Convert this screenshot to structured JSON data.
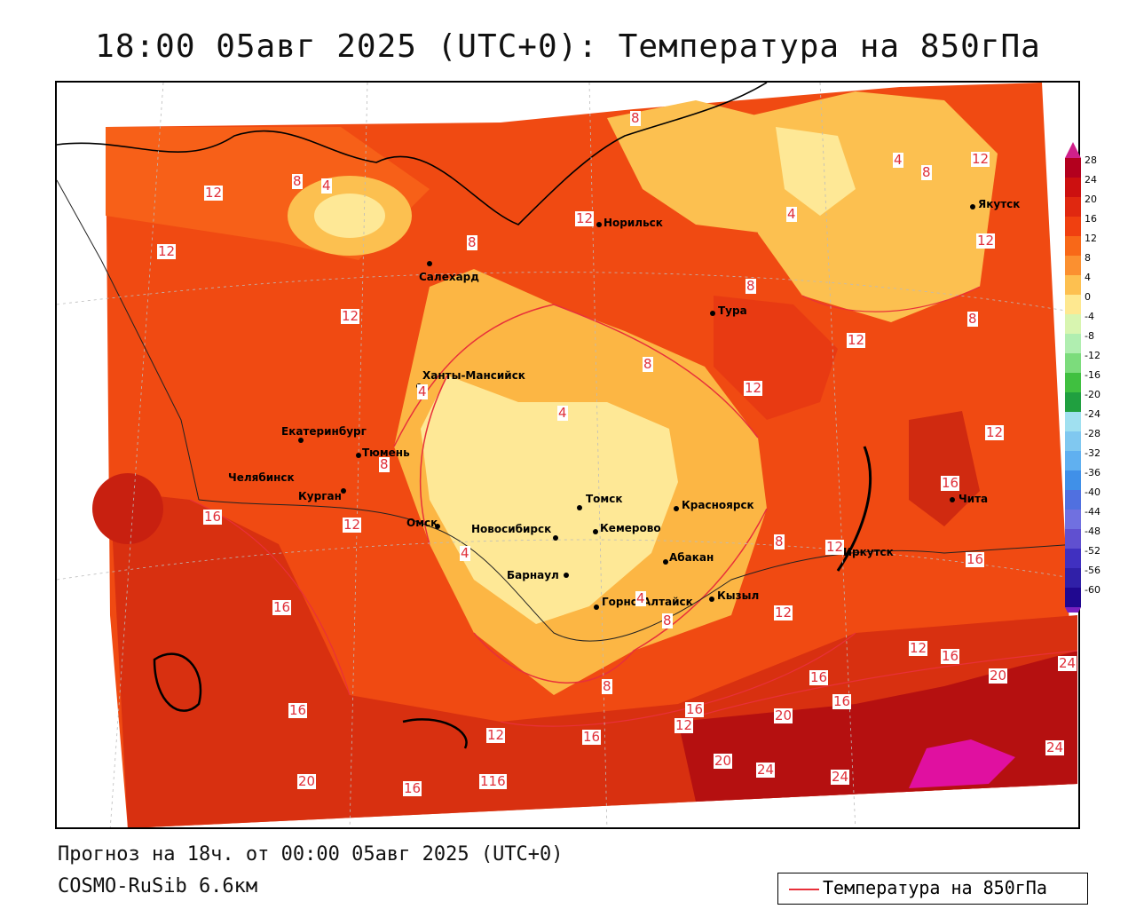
{
  "title": "18:00 05авг 2025 (UTC+0): Температура на 850гПа",
  "footer": {
    "forecast": "Прогноз на 18ч. от 00:00 05авг 2025 (UTC+0)",
    "model": "COSMO-RuSib 6.6км"
  },
  "legend": {
    "label": "Температура на 850гПа",
    "line_color": "#e8303a"
  },
  "colorbar": {
    "ticks": [
      "28",
      "24",
      "20",
      "16",
      "12",
      "8",
      "4",
      "0",
      "-4",
      "-8",
      "-12",
      "-16",
      "-20",
      "-24",
      "-28",
      "-32",
      "-36",
      "-40",
      "-44",
      "-48",
      "-52",
      "-56",
      "-60"
    ],
    "colors": [
      "#b3001e",
      "#cc1010",
      "#e02810",
      "#f04010",
      "#f86818",
      "#fb9030",
      "#fdc050",
      "#fee890",
      "#d8f5b0",
      "#b0eeb0",
      "#7cdc7c",
      "#40c040",
      "#20a040",
      "#a0e0f0",
      "#80c8f0",
      "#60b0f0",
      "#4090e8",
      "#5070e0",
      "#7070e0",
      "#6050d0",
      "#4030c0",
      "#3020a8",
      "#200890"
    ]
  },
  "cities": [
    {
      "name": "Норильск"
    },
    {
      "name": "Салехард"
    },
    {
      "name": "Якутск"
    },
    {
      "name": "Тура"
    },
    {
      "name": "Ханты-Мансийск"
    },
    {
      "name": "Екатеринбург"
    },
    {
      "name": "Тюмень"
    },
    {
      "name": "Челябинск"
    },
    {
      "name": "Курган"
    },
    {
      "name": "Томск"
    },
    {
      "name": "Красноярск"
    },
    {
      "name": "Омск"
    },
    {
      "name": "Новосибирск"
    },
    {
      "name": "Кемерово"
    },
    {
      "name": "Абакан"
    },
    {
      "name": "Барнаул"
    },
    {
      "name": "Иркутск"
    },
    {
      "name": "Чита"
    },
    {
      "name": "Горно-Алтайск"
    },
    {
      "name": "Кызыл"
    }
  ],
  "contour_labels": [
    "8",
    "12",
    "16",
    "20",
    "24",
    "4",
    "116",
    "12",
    "16",
    "8"
  ]
}
